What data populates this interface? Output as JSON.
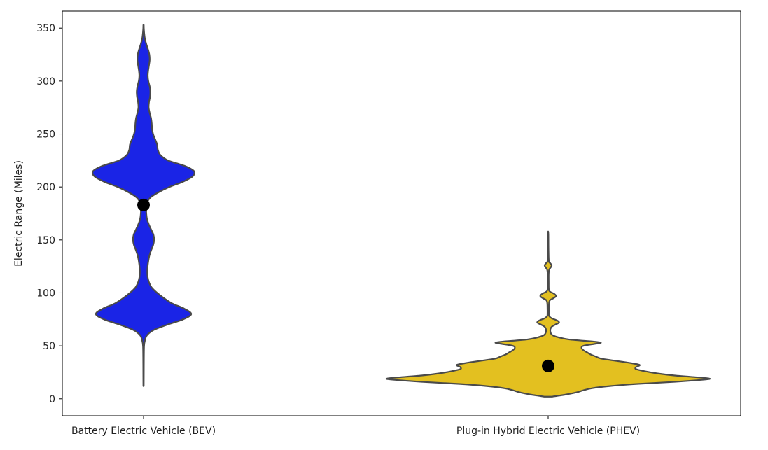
{
  "chart_data": {
    "type": "violin",
    "title": "",
    "xlabel": "",
    "ylabel": "Electric Range (Miles)",
    "ylim": [
      -16,
      366
    ],
    "yticks": [
      0,
      50,
      100,
      150,
      200,
      250,
      300,
      350
    ],
    "grid": false,
    "categories": [
      "Battery Electric Vehicle (BEV)",
      "Plug-in Hybrid Electric Vehicle (PHEV)"
    ],
    "series": [
      {
        "category": "Battery Electric Vehicle (BEV)",
        "color": "#1a24e6",
        "min": 12,
        "max": 353,
        "median": 183,
        "density": [
          [
            12,
            0.002
          ],
          [
            20,
            0.003
          ],
          [
            30,
            0.004
          ],
          [
            40,
            0.005
          ],
          [
            50,
            0.008
          ],
          [
            55,
            0.02
          ],
          [
            60,
            0.05
          ],
          [
            65,
            0.15
          ],
          [
            70,
            0.35
          ],
          [
            75,
            0.58
          ],
          [
            80,
            0.7
          ],
          [
            85,
            0.6
          ],
          [
            90,
            0.42
          ],
          [
            95,
            0.3
          ],
          [
            100,
            0.2
          ],
          [
            105,
            0.12
          ],
          [
            110,
            0.08
          ],
          [
            115,
            0.06
          ],
          [
            120,
            0.055
          ],
          [
            125,
            0.06
          ],
          [
            130,
            0.07
          ],
          [
            135,
            0.085
          ],
          [
            140,
            0.11
          ],
          [
            145,
            0.14
          ],
          [
            150,
            0.155
          ],
          [
            155,
            0.145
          ],
          [
            160,
            0.11
          ],
          [
            165,
            0.075
          ],
          [
            170,
            0.05
          ],
          [
            175,
            0.04
          ],
          [
            180,
            0.04
          ],
          [
            185,
            0.05
          ],
          [
            190,
            0.1
          ],
          [
            195,
            0.22
          ],
          [
            200,
            0.38
          ],
          [
            205,
            0.58
          ],
          [
            210,
            0.72
          ],
          [
            215,
            0.74
          ],
          [
            220,
            0.6
          ],
          [
            225,
            0.36
          ],
          [
            230,
            0.25
          ],
          [
            235,
            0.21
          ],
          [
            240,
            0.2
          ],
          [
            245,
            0.17
          ],
          [
            250,
            0.14
          ],
          [
            255,
            0.125
          ],
          [
            260,
            0.12
          ],
          [
            265,
            0.11
          ],
          [
            270,
            0.09
          ],
          [
            275,
            0.075
          ],
          [
            280,
            0.08
          ],
          [
            285,
            0.095
          ],
          [
            290,
            0.1
          ],
          [
            295,
            0.09
          ],
          [
            300,
            0.07
          ],
          [
            305,
            0.062
          ],
          [
            310,
            0.068
          ],
          [
            315,
            0.08
          ],
          [
            320,
            0.09
          ],
          [
            325,
            0.085
          ],
          [
            330,
            0.065
          ],
          [
            335,
            0.04
          ],
          [
            340,
            0.02
          ],
          [
            345,
            0.01
          ],
          [
            350,
            0.004
          ],
          [
            353,
            0.002
          ]
        ]
      },
      {
        "category": "Plug-in Hybrid Electric Vehicle (PHEV)",
        "color": "#e3c020",
        "min": 2,
        "max": 156,
        "median": 31,
        "density": [
          [
            2,
            0.02
          ],
          [
            4,
            0.1
          ],
          [
            6,
            0.16
          ],
          [
            8,
            0.2
          ],
          [
            10,
            0.25
          ],
          [
            12,
            0.35
          ],
          [
            14,
            0.5
          ],
          [
            16,
            0.72
          ],
          [
            18,
            0.88
          ],
          [
            19,
            0.92
          ],
          [
            20,
            0.87
          ],
          [
            22,
            0.72
          ],
          [
            24,
            0.62
          ],
          [
            26,
            0.55
          ],
          [
            28,
            0.5
          ],
          [
            30,
            0.5
          ],
          [
            32,
            0.52
          ],
          [
            34,
            0.46
          ],
          [
            36,
            0.38
          ],
          [
            38,
            0.3
          ],
          [
            40,
            0.27
          ],
          [
            42,
            0.24
          ],
          [
            44,
            0.22
          ],
          [
            46,
            0.2
          ],
          [
            48,
            0.19
          ],
          [
            50,
            0.2
          ],
          [
            52,
            0.27
          ],
          [
            53,
            0.3
          ],
          [
            54,
            0.26
          ],
          [
            56,
            0.12
          ],
          [
            58,
            0.06
          ],
          [
            60,
            0.025
          ],
          [
            62,
            0.015
          ],
          [
            64,
            0.012
          ],
          [
            66,
            0.013
          ],
          [
            68,
            0.02
          ],
          [
            70,
            0.04
          ],
          [
            72,
            0.062
          ],
          [
            74,
            0.05
          ],
          [
            76,
            0.02
          ],
          [
            78,
            0.006
          ],
          [
            80,
            0.004
          ],
          [
            85,
            0.004
          ],
          [
            90,
            0.005
          ],
          [
            93,
            0.01
          ],
          [
            95,
            0.03
          ],
          [
            97,
            0.045
          ],
          [
            99,
            0.035
          ],
          [
            101,
            0.012
          ],
          [
            103,
            0.004
          ],
          [
            110,
            0.003
          ],
          [
            118,
            0.003
          ],
          [
            122,
            0.006
          ],
          [
            124,
            0.014
          ],
          [
            126,
            0.02
          ],
          [
            128,
            0.012
          ],
          [
            130,
            0.004
          ],
          [
            140,
            0.002
          ],
          [
            156,
            0.001
          ]
        ]
      }
    ]
  }
}
